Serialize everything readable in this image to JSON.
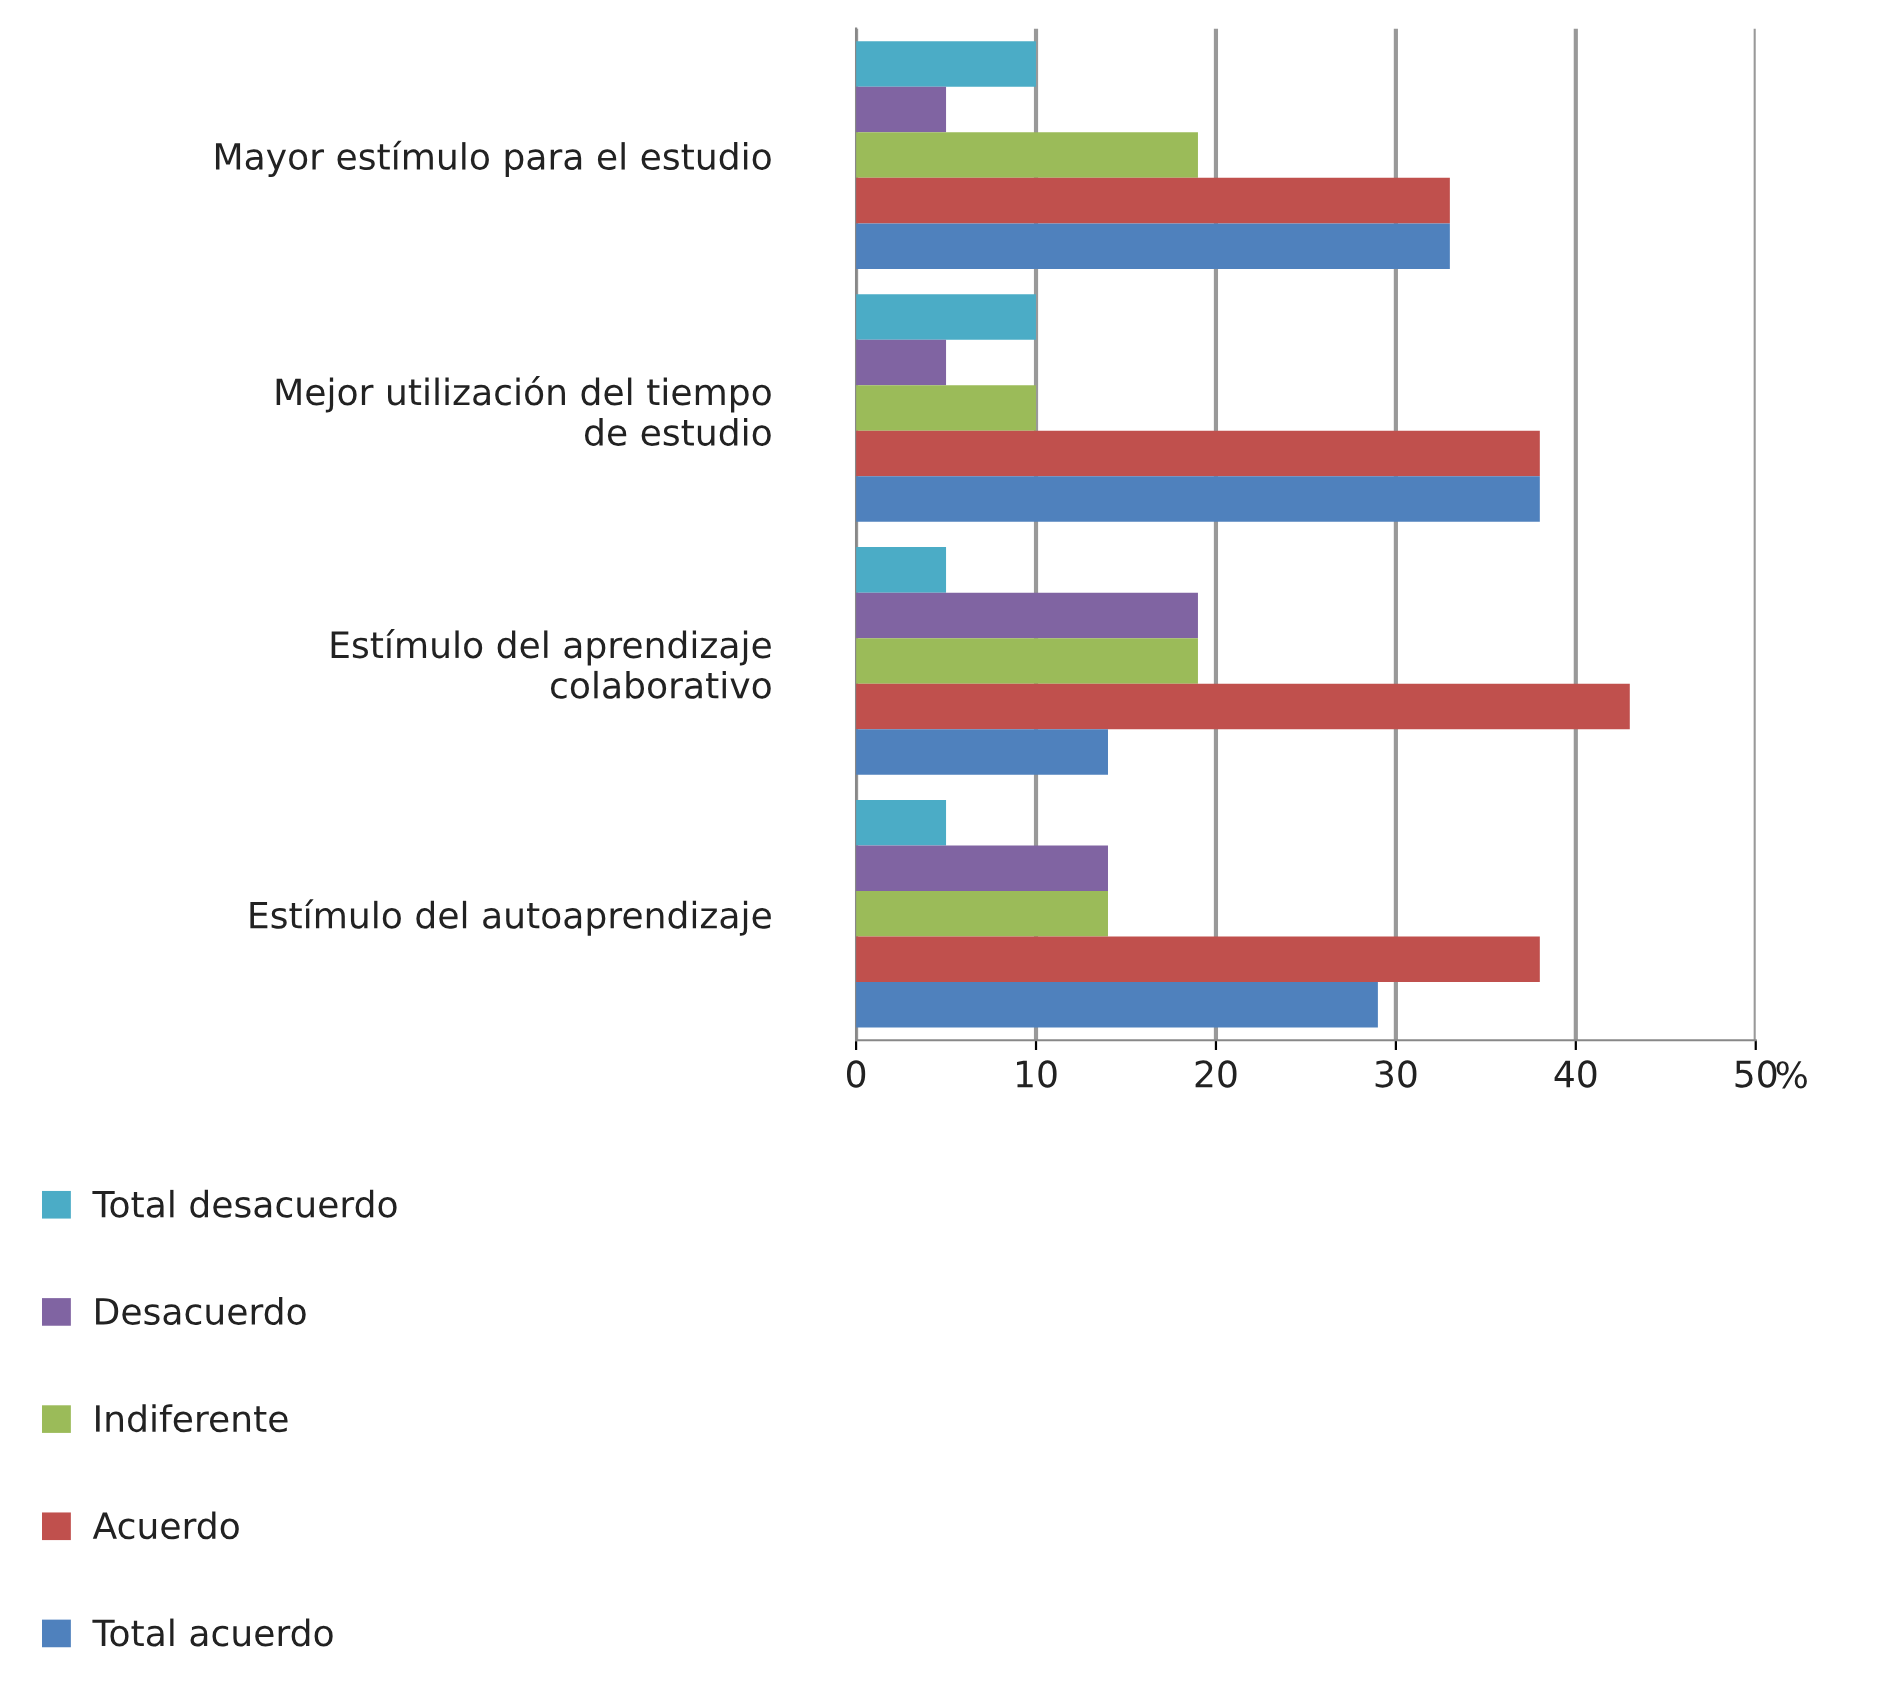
{
  "chart_data": {
    "type": "bar",
    "orientation": "horizontal",
    "xlabel": "%",
    "categories": [
      "Mayor estímulo para el estudio",
      "Mejor utilización del tiempo\nde estudio",
      "Estímulo del aprendizaje\ncolaborativo",
      "Estímulo del autoaprendizaje"
    ],
    "series": [
      {
        "name": "Total desacuerdo",
        "color": "#4bacc6",
        "values": [
          10,
          10,
          5,
          5
        ]
      },
      {
        "name": "Desacuerdo",
        "color": "#8064a2",
        "values": [
          5,
          5,
          19,
          14
        ]
      },
      {
        "name": "Indiferente",
        "color": "#9bbb59",
        "values": [
          19,
          10,
          19,
          14
        ]
      },
      {
        "name": "Acuerdo",
        "color": "#c0504d",
        "values": [
          33,
          38,
          43,
          38
        ]
      },
      {
        "name": "Total acuerdo",
        "color": "#4f81bd",
        "values": [
          33,
          38,
          14,
          29
        ]
      }
    ],
    "xlim": [
      0,
      50
    ],
    "xticks": [
      0,
      10,
      20,
      30,
      40,
      50
    ],
    "grid": "x",
    "legend": "bottom left"
  }
}
